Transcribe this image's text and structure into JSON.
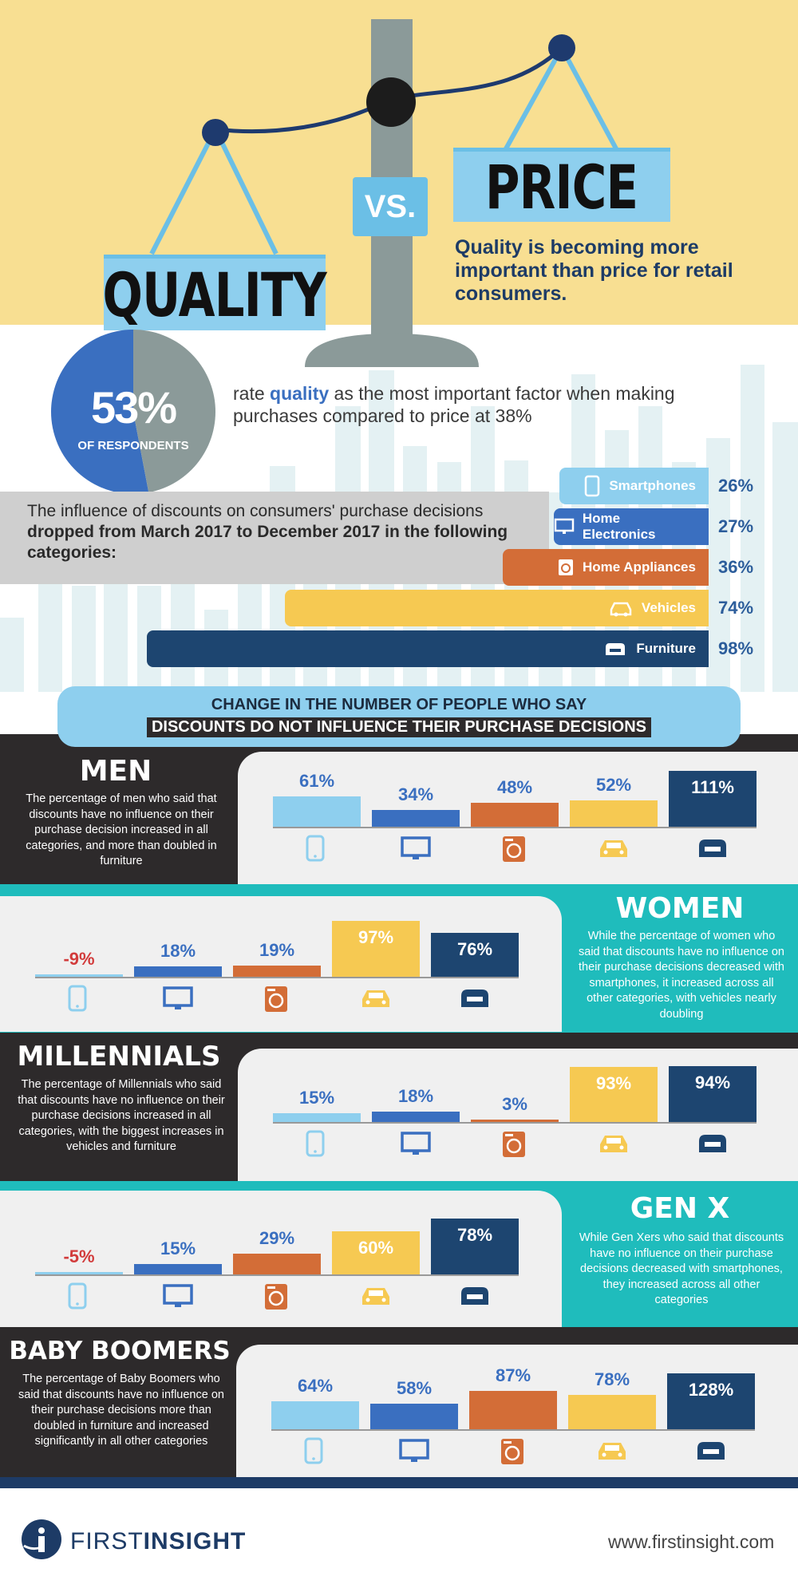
{
  "header": {
    "quality_label": "QUALITY",
    "vs_label": "VS.",
    "price_label": "PRICE",
    "tagline": "Quality is becoming more important than price for retail consumers."
  },
  "stat": {
    "percent": "53%",
    "respondents_label": "OF RESPONDENTS",
    "text_pre": "rate ",
    "text_highlight": "quality",
    "text_post": " as the most important factor when making purchases compared to price at 38%",
    "quality_share": 53
  },
  "discount_intro": {
    "line1": "The influence of discounts on consumers' purchase decisions",
    "line2": "dropped from March 2017 to December 2017 in the following categories:"
  },
  "chart_data": [
    {
      "type": "bar",
      "title": "The influence of discounts on consumers' purchase decisions dropped from March 2017 to December 2017 in the following categories:",
      "categories": [
        "Smartphones",
        "Home Electronics",
        "Home Appliances",
        "Vehicles",
        "Furniture"
      ],
      "values": [
        26,
        27,
        36,
        74,
        98
      ],
      "labels": [
        "26%",
        "27%",
        "36%",
        "74%",
        "98%"
      ],
      "colors": [
        "#8ecfee",
        "#3a6fc0",
        "#d36d37",
        "#f6c952",
        "#1d4570"
      ]
    },
    {
      "type": "bar",
      "title": "MEN",
      "categories": [
        "Smartphones",
        "Home Electronics",
        "Home Appliances",
        "Vehicles",
        "Furniture"
      ],
      "values": [
        61,
        34,
        48,
        52,
        111
      ],
      "labels": [
        "61%",
        "34%",
        "48%",
        "52%",
        "111%"
      ]
    },
    {
      "type": "bar",
      "title": "WOMEN",
      "categories": [
        "Smartphones",
        "Home Electronics",
        "Home Appliances",
        "Vehicles",
        "Furniture"
      ],
      "values": [
        -9,
        18,
        19,
        97,
        76
      ],
      "labels": [
        "-9%",
        "18%",
        "19%",
        "97%",
        "76%"
      ]
    },
    {
      "type": "bar",
      "title": "MILLENNIALS",
      "categories": [
        "Smartphones",
        "Home Electronics",
        "Home Appliances",
        "Vehicles",
        "Furniture"
      ],
      "values": [
        15,
        18,
        3,
        93,
        94
      ],
      "labels": [
        "15%",
        "18%",
        "3%",
        "93%",
        "94%"
      ]
    },
    {
      "type": "bar",
      "title": "GEN X",
      "categories": [
        "Smartphones",
        "Home Electronics",
        "Home Appliances",
        "Vehicles",
        "Furniture"
      ],
      "values": [
        -5,
        15,
        29,
        60,
        78
      ],
      "labels": [
        "-5%",
        "15%",
        "29%",
        "60%",
        "78%"
      ]
    },
    {
      "type": "bar",
      "title": "BABY BOOMERS",
      "categories": [
        "Smartphones",
        "Home Electronics",
        "Home Appliances",
        "Vehicles",
        "Furniture"
      ],
      "values": [
        64,
        58,
        87,
        78,
        128
      ],
      "labels": [
        "64%",
        "58%",
        "87%",
        "78%",
        "128%"
      ]
    }
  ],
  "change_banner": {
    "line1": "CHANGE IN THE NUMBER OF PEOPLE WHO SAY",
    "line2": "DISCOUNTS DO NOT INFLUENCE THEIR PURCHASE DECISIONS"
  },
  "sections": [
    {
      "title": "MEN",
      "desc": "The percentage of men who said that discounts have no influence on their purchase decision increased in all categories, and more than doubled in furniture"
    },
    {
      "title": "WOMEN",
      "desc": "While the percentage of women who said that discounts have no influence on their purchase decisions decreased with smartphones, it increased across all other categories, with vehicles nearly doubling"
    },
    {
      "title": "MILLENNIALS",
      "desc": "The percentage of Millennials who said that discounts have no influence on their purchase decisions increased in all categories, with the biggest increases in vehicles and furniture"
    },
    {
      "title": "GEN X",
      "desc": "While Gen Xers who said that discounts have no influence on their purchase decisions decreased with smartphones, they increased across all other categories"
    },
    {
      "title": "BABY BOOMERS",
      "desc": "The percentage of Baby Boomers who said that discounts have no influence on their purchase decisions more than doubled in furniture and increased significantly in all other categories"
    }
  ],
  "colors": {
    "smartphones": "#8ecfee",
    "home_electronics": "#3a6fc0",
    "home_appliances": "#d36d37",
    "vehicles": "#f6c952",
    "furniture": "#1d4570",
    "dark_bg": "#2d2a2b",
    "teal_bg": "#1fbcbc",
    "negative": "#d23b3b"
  },
  "icons": [
    "smartphone-icon",
    "monitor-icon",
    "washer-icon",
    "car-icon",
    "sofa-icon"
  ],
  "footer": {
    "brand_light": "FIRST",
    "brand_bold": "INSIGHT",
    "url": "www.firstinsight.com"
  }
}
